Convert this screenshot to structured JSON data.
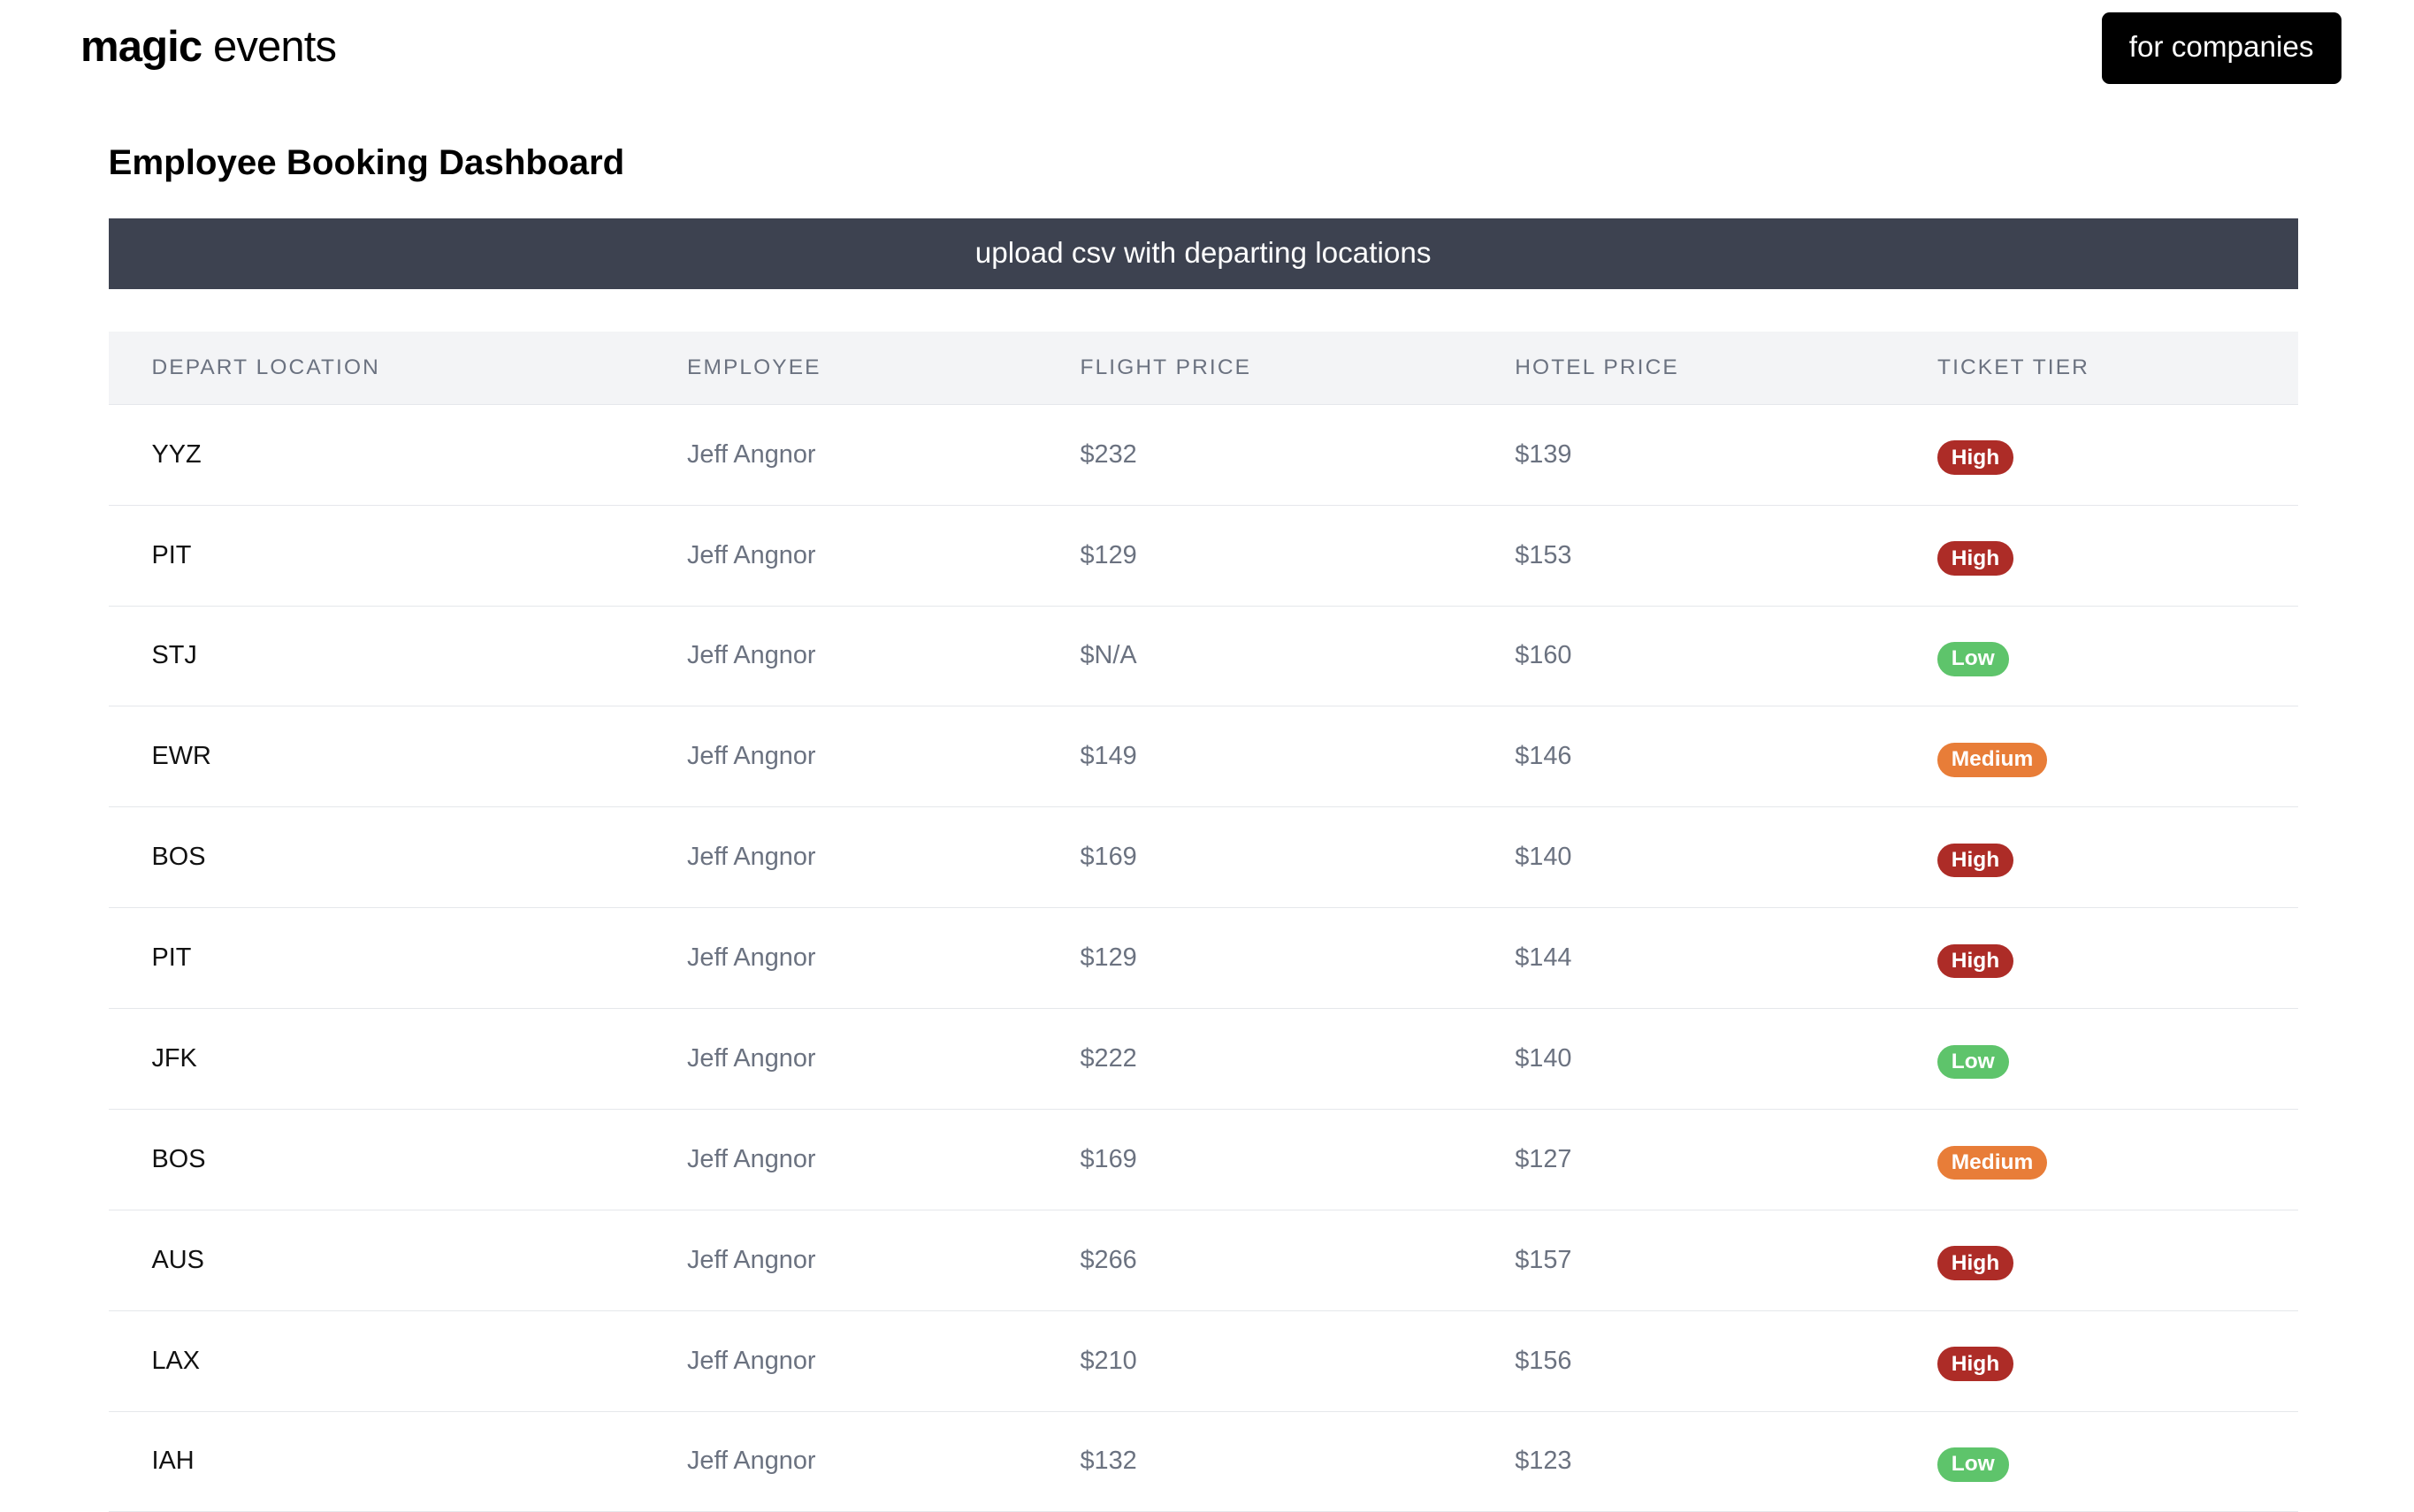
{
  "header": {
    "logo_bold": "magic",
    "logo_light": " events",
    "cta_label": "for companies"
  },
  "page_title": "Employee Booking Dashboard",
  "upload_label": "upload csv with departing locations",
  "table": {
    "columns": [
      "Depart Location",
      "Employee",
      "Flight Price",
      "Hotel Price",
      "Ticket Tier"
    ],
    "rows": [
      [
        "YYZ",
        "Jeff Angnor",
        "$232",
        "$139",
        "High"
      ],
      [
        "PIT",
        "Jeff Angnor",
        "$129",
        "$153",
        "High"
      ],
      [
        "STJ",
        "Jeff Angnor",
        "$N/A",
        "$160",
        "Low"
      ],
      [
        "EWR",
        "Jeff Angnor",
        "$149",
        "$146",
        "Medium"
      ],
      [
        "BOS",
        "Jeff Angnor",
        "$169",
        "$140",
        "High"
      ],
      [
        "PIT",
        "Jeff Angnor",
        "$129",
        "$144",
        "High"
      ],
      [
        "JFK",
        "Jeff Angnor",
        "$222",
        "$140",
        "Low"
      ],
      [
        "BOS",
        "Jeff Angnor",
        "$169",
        "$127",
        "Medium"
      ],
      [
        "AUS",
        "Jeff Angnor",
        "$266",
        "$157",
        "High"
      ],
      [
        "LAX",
        "Jeff Angnor",
        "$210",
        "$156",
        "High"
      ],
      [
        "IAH",
        "Jeff Angnor",
        "$132",
        "$123",
        "Low"
      ]
    ]
  },
  "tier_colors": {
    "High": "#ad2c27",
    "Medium": "#e87d38",
    "Low": "#5ec46b"
  }
}
